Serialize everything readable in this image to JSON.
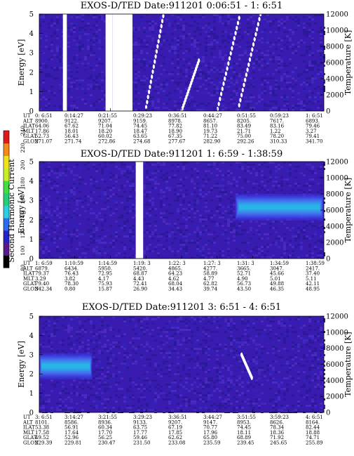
{
  "colors": {
    "background": "#3a1bb0",
    "gap": "#ffffff",
    "hot": "#4a6cf0",
    "axis": "#000000"
  },
  "colorbar": {
    "label": "Second Harmonic Current",
    "ticks": [
      "80",
      "100",
      "120",
      "140",
      "160",
      "180",
      "200",
      "220",
      "240"
    ],
    "colors": [
      "#000000",
      "#5a1a8c",
      "#2424c8",
      "#2a6cf0",
      "#2ad0e0",
      "#22d07a",
      "#3ee03e",
      "#c8f020",
      "#f0e21a",
      "#f58a16",
      "#e01a1a"
    ]
  },
  "axes": {
    "left_label": "Energy [eV]",
    "right_label": "Temperature [K]",
    "energy_ticks": [
      "0",
      "1",
      "2",
      "3",
      "4",
      "5"
    ],
    "temperature_ticks": [
      "0",
      "2000",
      "4000",
      "6000",
      "8000",
      "10000",
      "12000"
    ]
  },
  "row_labels": [
    "UT",
    "ALT",
    "ILAT",
    "MLT",
    "GLAT",
    "GLON"
  ],
  "chart_data": [
    {
      "type": "heatmap",
      "title": "EXOS-D/TED    Date:911201   0:06:51 - 1: 6:51",
      "ylabel": "Energy [eV]",
      "y2label": "Temperature [K]",
      "ylim": [
        0,
        5
      ],
      "y2lim": [
        0,
        12000
      ],
      "time_range": [
        "0:06:51",
        "1:06:51"
      ],
      "ephemeris": [
        [
          "0: 6:51",
          "0:14:27",
          "0:21:55",
          "0:29:23",
          "0:36:51",
          "0:44:27",
          "0:51:55",
          "0:59:23",
          "1: 6:51"
        ],
        [
          "8900.",
          "9122.",
          "9207.",
          "9159.",
          "8978.",
          "8657.",
          "8205.",
          "7617.",
          "6893."
        ],
        [
          "64.06",
          "67.62",
          "71.04",
          "74.45",
          "77.82",
          "81.10",
          "83.49",
          "83.16",
          "79.46"
        ],
        [
          "17.86",
          "18.01",
          "18.20",
          "18.47",
          "18.90",
          "19.73",
          "21.71",
          "1.22",
          "3.27"
        ],
        [
          "52.73",
          "56.43",
          "60.02",
          "63.65",
          "67.35",
          "71.22",
          "75.00",
          "78.20",
          "79.41"
        ],
        [
          "271.07",
          "271.74",
          "272.86",
          "274.68",
          "277.67",
          "282.90",
          "292.26",
          "310.33",
          "341.70"
        ]
      ],
      "data_gaps": [
        {
          "t0": "0:11:50",
          "t1": "0:12:40",
          "e0": 0,
          "e1": 5
        },
        {
          "t0": "0:20:50",
          "t1": "0:22:20",
          "e0": 0,
          "e1": 5
        },
        {
          "t0": "0:22:20",
          "t1": "0:26:30",
          "e0": 0,
          "e1": 5
        }
      ],
      "features": [
        {
          "t_start": "0:29:23",
          "e_start": 0.2,
          "t_end": "0:33:00",
          "e_end": 4.9
        },
        {
          "t_start": "0:36:51",
          "e_start": 0.0,
          "t_end": "0:40:30",
          "e_end": 2.6
        },
        {
          "t_start": "0:49:00",
          "e_start": 0.3,
          "t_end": "0:53:30",
          "e_end": 5.0
        },
        {
          "t_start": "0:44:27",
          "e_start": 0.1,
          "t_end": "0:49:00",
          "e_end": 4.8
        }
      ]
    },
    {
      "type": "heatmap",
      "title": "EXOS-D/TED    Date:911201   1: 6:59 - 1:38:59",
      "ylabel": "Energy [eV]",
      "y2label": "Temperature [K]",
      "ylim": [
        0,
        5
      ],
      "y2lim": [
        0,
        12000
      ],
      "time_range": [
        "1:06:59",
        "1:38:59"
      ],
      "ephemeris": [
        [
          "1: 6:59",
          "1:10:59",
          "1:14:59",
          "1:19: 3",
          "1:22: 3",
          "1:27: 3",
          "1:31: 3",
          "1:34:59",
          "1:38:59"
        ],
        [
          "6879.",
          "6434.",
          "5950.",
          "5420.",
          "4865.",
          "4277.",
          "3665.",
          "3047.",
          "2417."
        ],
        [
          "79.37",
          "76.43",
          "72.95",
          "68.87",
          "64.23",
          "58.89",
          "52.71",
          "45.66",
          "37.40"
        ],
        [
          "3.29",
          "3.82",
          "4.17",
          "4.43",
          "4.62",
          "4.77",
          "4.90",
          "5.01",
          "5.11"
        ],
        [
          "79.40",
          "78.30",
          "75.93",
          "72.41",
          "68.04",
          "62.82",
          "56.73",
          "49.88",
          "42.11"
        ],
        [
          "342.34",
          "0.80",
          "15.87",
          "26.90",
          "34.43",
          "39.74",
          "43.50",
          "46.35",
          "48.95"
        ]
      ],
      "data_gaps": [
        {
          "t0": "1:17:50",
          "t1": "1:18:40",
          "e0": 0,
          "e1": 5
        }
      ],
      "features": [
        {
          "t_start": "1:29:00",
          "t_end": "1:38:59",
          "e_center": 2.65,
          "level": "high"
        }
      ]
    },
    {
      "type": "heatmap",
      "title": "EXOS-D/TED    Date:911201   3: 6:51 - 4: 6:51",
      "ylabel": "Energy [eV]",
      "y2label": "Temperature [K]",
      "ylim": [
        0,
        5
      ],
      "y2lim": [
        0,
        12000
      ],
      "time_range": [
        "3:06:51",
        "4:06:51"
      ],
      "ephemeris": [
        [
          "3: 6:51",
          "3:14:27",
          "3:21:55",
          "3:29:23",
          "3:36:51",
          "3:44:27",
          "3:51:55",
          "3:59:23",
          "4: 6:51"
        ],
        [
          "8101.",
          "8586.",
          "8936.",
          "9133.",
          "9207.",
          "9147.",
          "8953.",
          "8626.",
          "8164."
        ],
        [
          "53.38",
          "56.91",
          "60.34",
          "63.75",
          "67.19",
          "70.77",
          "74.45",
          "78.34",
          "82.44"
        ],
        [
          "17.58",
          "17.64",
          "17.70",
          "17.77",
          "17.85",
          "17.96",
          "18.11",
          "18.36",
          "18.88"
        ],
        [
          "49.52",
          "52.96",
          "56.25",
          "59.46",
          "62.62",
          "65.80",
          "68.89",
          "71.92",
          "74.71"
        ],
        [
          "229.39",
          "229.81",
          "230.47",
          "231.50",
          "233.08",
          "235.59",
          "239.45",
          "245.65",
          "255.89"
        ]
      ],
      "data_gaps": [],
      "features": [
        {
          "t_start": "3:06:51",
          "t_end": "3:18:00",
          "e_center": 2.4,
          "level": "high"
        },
        {
          "t_start": "3:49:30",
          "e_start": 3.0,
          "t_end": "3:51:40",
          "e_end": 1.8
        }
      ]
    }
  ]
}
